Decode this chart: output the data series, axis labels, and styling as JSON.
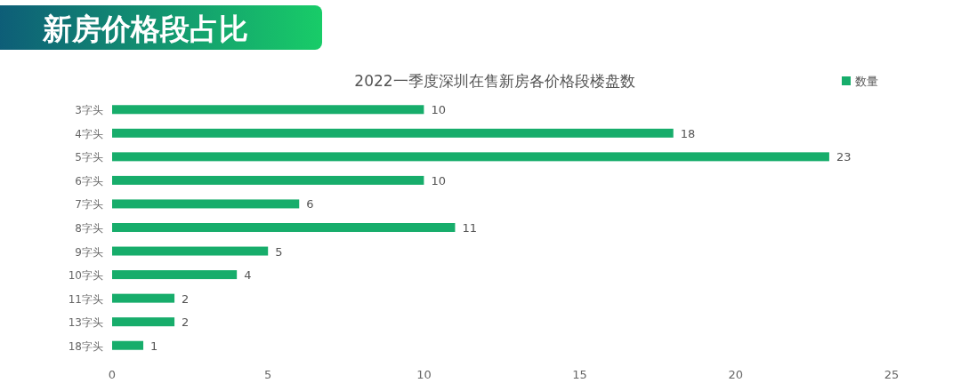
{
  "chart_data": {
    "type": "bar",
    "orientation": "horizontal",
    "title": "新房价格段占比",
    "subtitle": "2022一季度深圳在售新房各价格段楼盘数",
    "categories": [
      "3字头",
      "4字头",
      "5字头",
      "6字头",
      "7字头",
      "8字头",
      "9字头",
      "10字头",
      "11字头",
      "13字头",
      "18字头"
    ],
    "series": [
      {
        "name": "数量",
        "color": "#17ad6b",
        "values": [
          10,
          18,
          23,
          10,
          6,
          11,
          5,
          4,
          2,
          2,
          1
        ]
      }
    ],
    "xlim": [
      0,
      25
    ],
    "xticks": [
      0,
      5,
      10,
      15,
      20,
      25
    ],
    "data_labels": true,
    "legend": "top right",
    "grid": false
  }
}
